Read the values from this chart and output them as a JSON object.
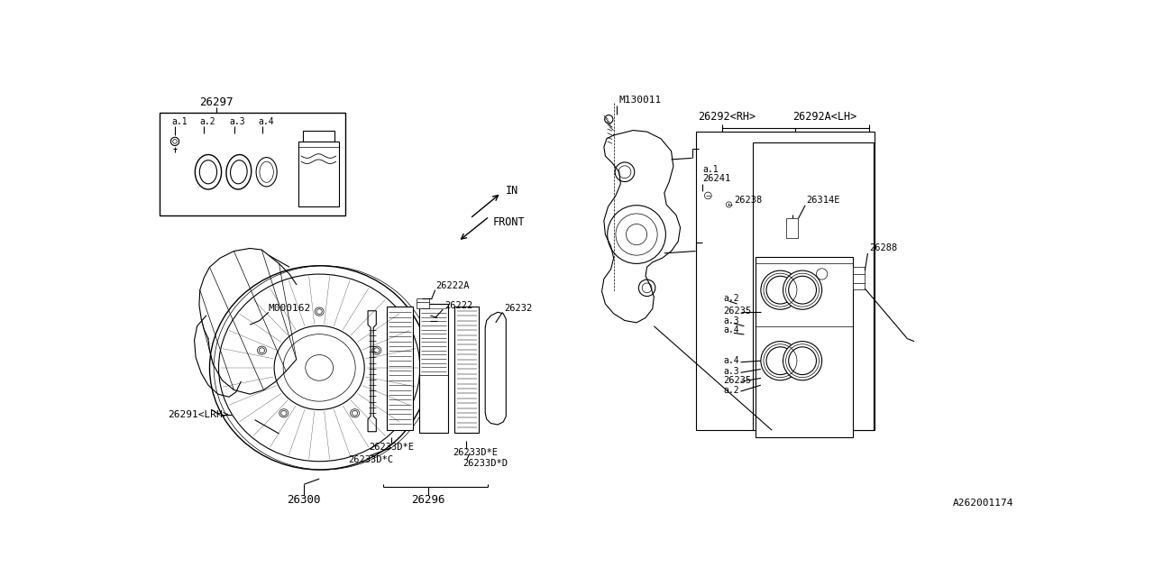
{
  "bg": "#ffffff",
  "lc": "#000000",
  "fig_w": 12.8,
  "fig_h": 6.4,
  "dpi": 100,
  "annotations": {
    "part_id": "A262001174",
    "top_left_label": "26297",
    "bolt_label": "M130011",
    "rh_label": "26292<RH>",
    "lh_label": "26292A<LH>",
    "a1_lbl": "a.1",
    "a2_lbl": "a.2",
    "a3_lbl": "a.3",
    "a4_lbl": "a.4",
    "lbl_26241": "26241",
    "lbl_26238": "26238",
    "lbl_26314E": "26314E",
    "lbl_26288": "26288",
    "lbl_M000162": "M000162",
    "lbl_26222A": "26222A",
    "lbl_26222": "26222",
    "lbl_26232": "26232",
    "lbl_26291": "26291<LRH>",
    "lbl_26233DE_l": "26233D*E",
    "lbl_26233DC": "26233D*C",
    "lbl_26233DE_r": "26233D*E",
    "lbl_26233DD": "26233D*D",
    "lbl_26300": "26300",
    "lbl_26296": "26296",
    "lbl_26235": "26235",
    "in_text": "IN",
    "front_text": "FRONT"
  }
}
